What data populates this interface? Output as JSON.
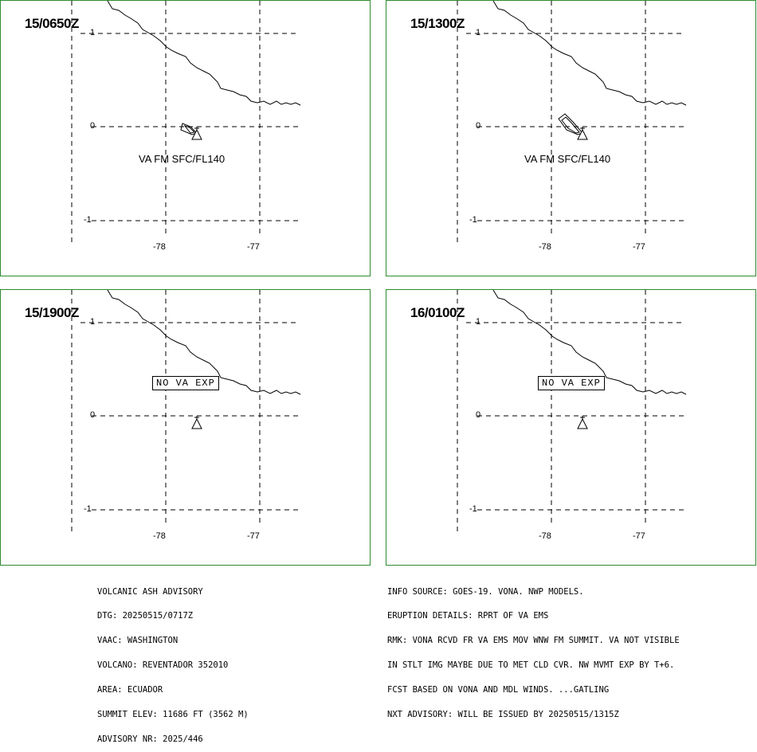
{
  "panels": [
    {
      "time": "15/0650Z",
      "va_label": "VA FM SFC/FL140",
      "no_va": ""
    },
    {
      "time": "15/1300Z",
      "va_label": "VA FM SFC/FL140",
      "no_va": ""
    },
    {
      "time": "15/1900Z",
      "va_label": "",
      "no_va": "NO VA EXP"
    },
    {
      "time": "16/0100Z",
      "va_label": "",
      "no_va": "NO VA EXP"
    }
  ],
  "axes": {
    "lat_labels": [
      "1",
      "0",
      "-1"
    ],
    "lon_labels": [
      "-78",
      "-77"
    ]
  },
  "advisory_left": [
    "VOLCANIC ASH ADVISORY",
    "DTG: 20250515/0717Z",
    "VAAC: WASHINGTON",
    "VOLCANO: REVENTADOR 352010",
    "AREA: ECUADOR",
    "SUMMIT ELEV: 11686 FT (3562 M)",
    "ADVISORY NR: 2025/446"
  ],
  "advisory_right": [
    "INFO SOURCE: GOES-19. VONA. NWP MODELS.",
    "ERUPTION DETAILS: RPRT OF VA EMS",
    "RMK: VONA RCVD FR VA EMS MOV WNW FM SUMMIT. VA NOT VISIBLE",
    "IN STLT IMG MAYBE DUE TO MET CLD CVR. NW MVMT EXP BY T+6.",
    "FCST BASED ON VONA AND MDL WINDS. ...GATLING",
    "NXT ADVISORY: WILL BE ISSUED BY 20250515/1315Z"
  ],
  "colors": {
    "panel_border": "#2e8b2e",
    "lines": "#000000"
  },
  "icons": {
    "volcano": "volcano-triangle-icon",
    "ash_plume": "ash-plume-polygon"
  }
}
